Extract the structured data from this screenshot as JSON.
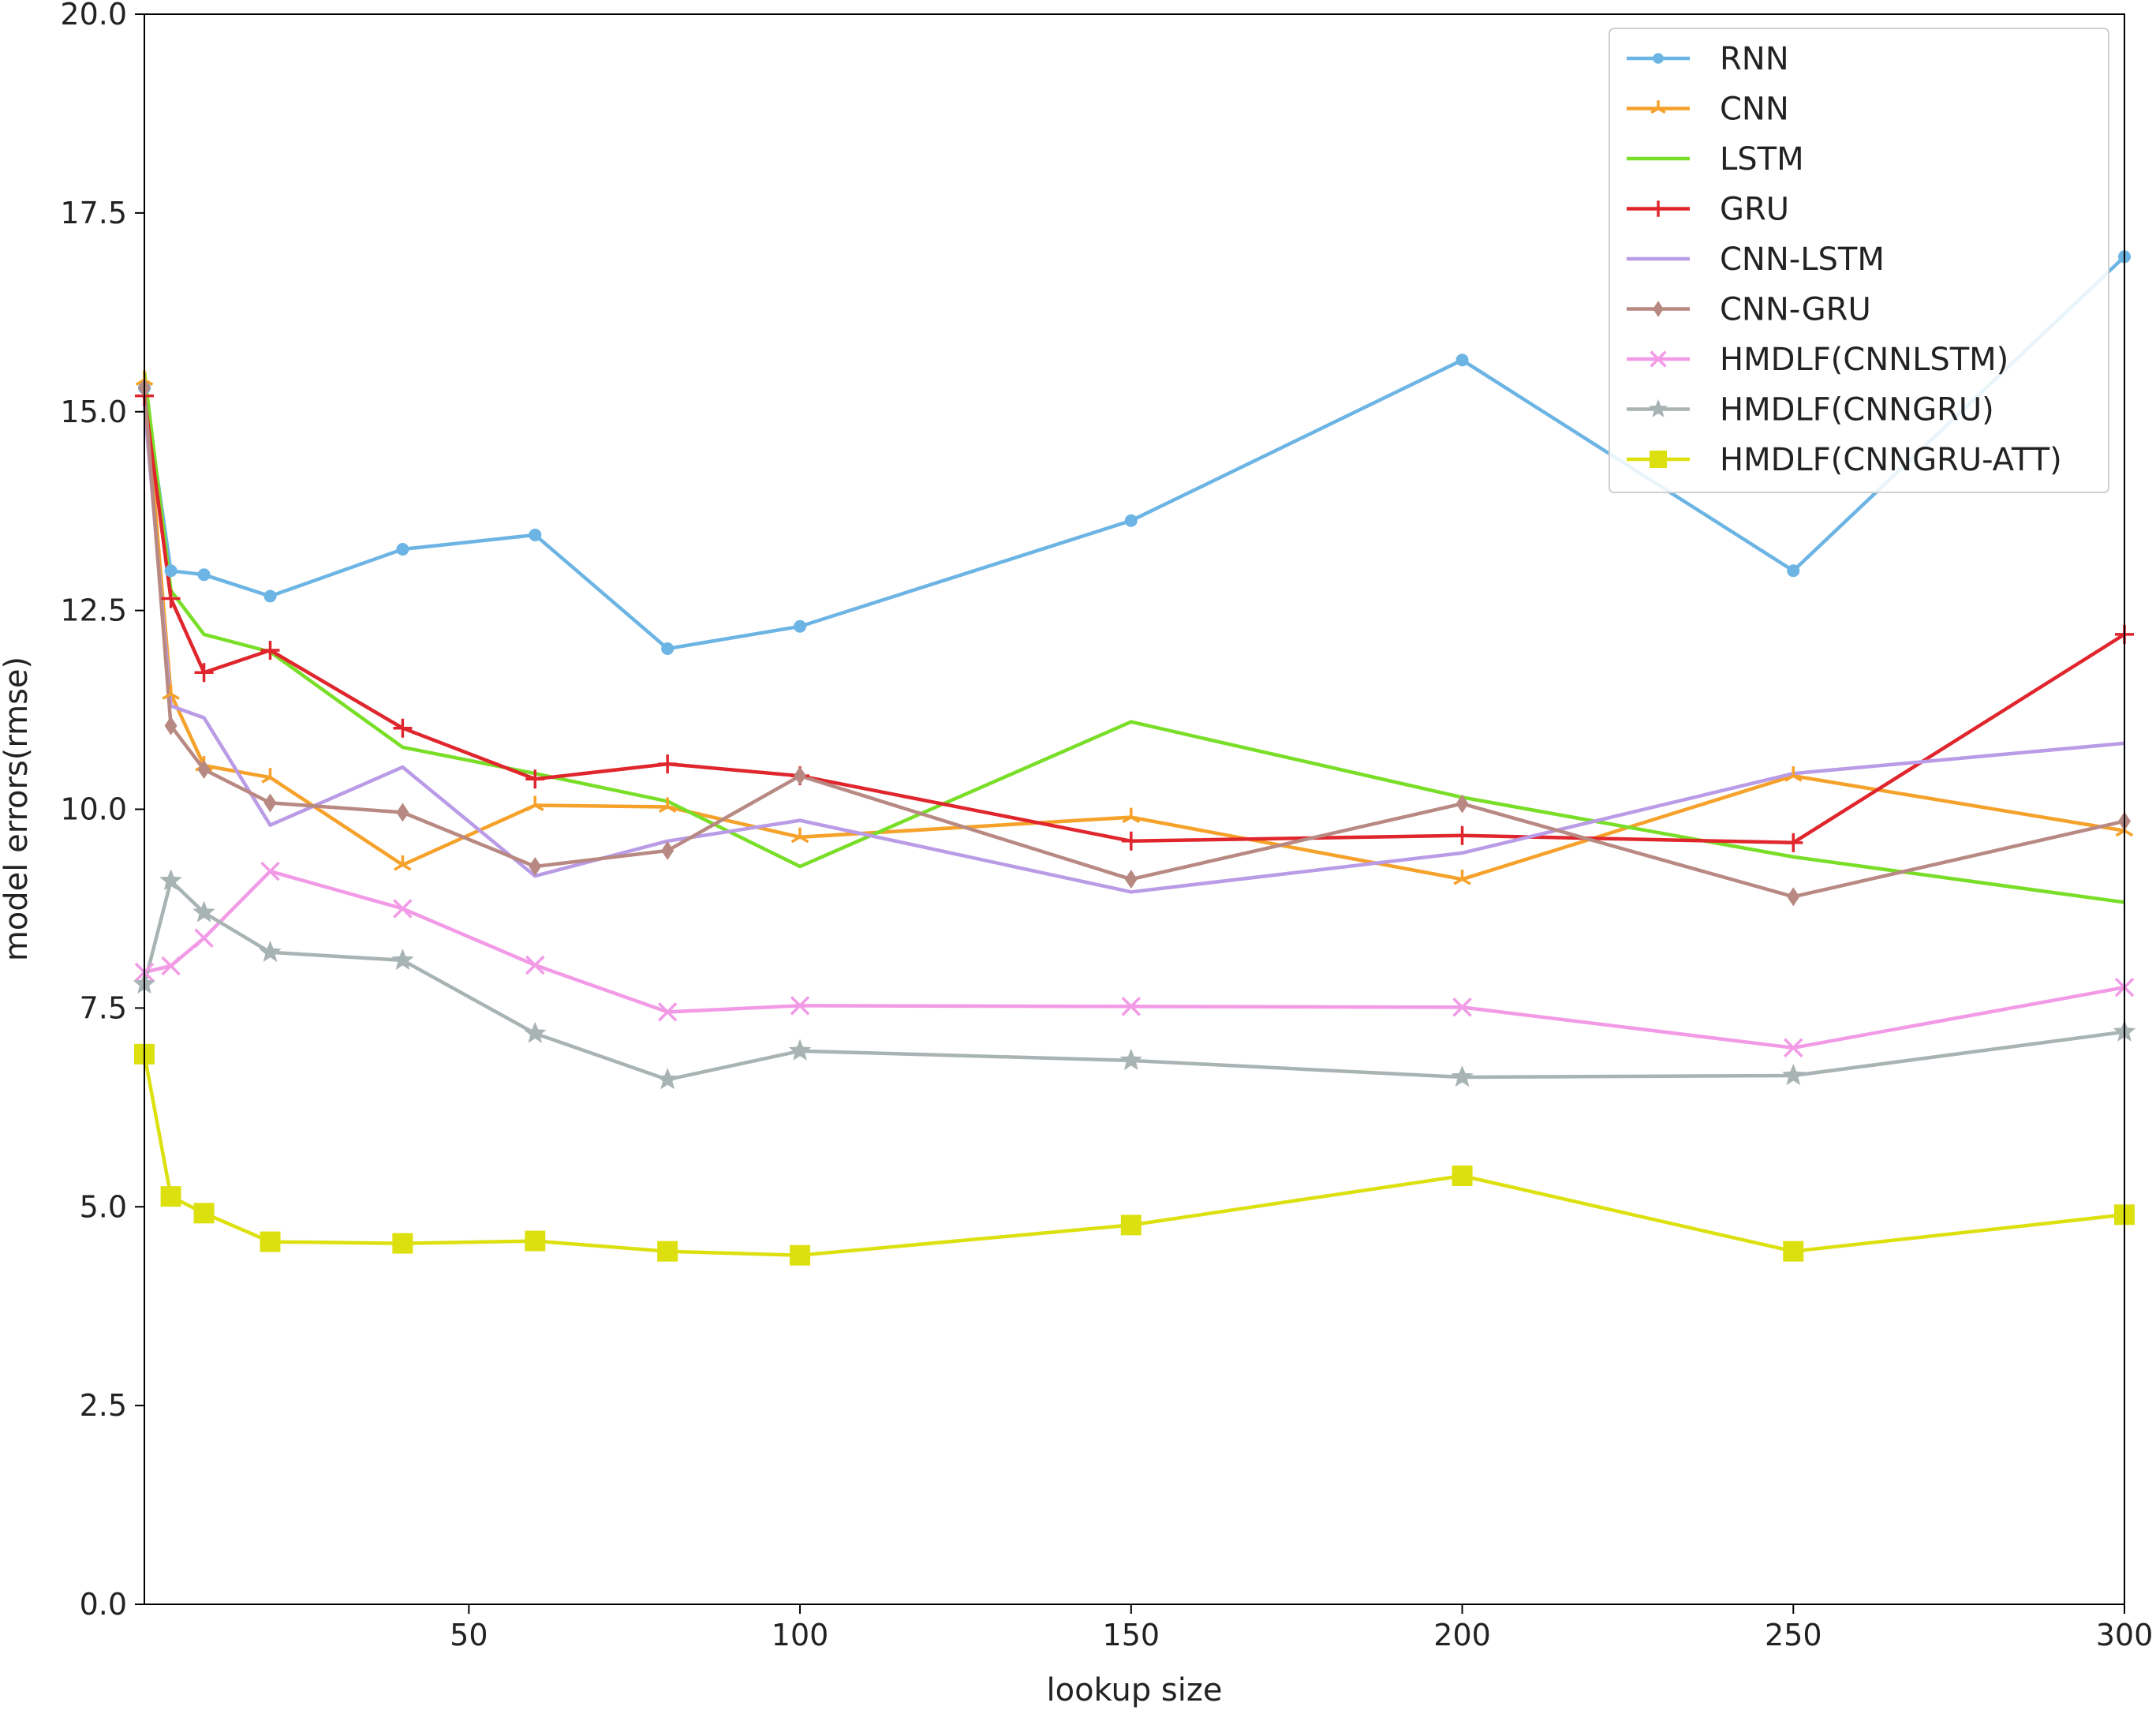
{
  "chart_data": {
    "type": "line",
    "title": "",
    "xlabel": "lookup size",
    "ylabel": "model errors(rmse)",
    "xlim": [
      1,
      300
    ],
    "ylim": [
      0,
      20
    ],
    "x_ticks": [
      50,
      100,
      150,
      200,
      250,
      300
    ],
    "x_tick_labels": [
      "50",
      "100",
      "150",
      "200",
      "250",
      "300"
    ],
    "y_ticks": [
      0,
      2.5,
      5,
      7.5,
      10,
      12.5,
      15,
      17.5,
      20
    ],
    "y_tick_labels": [
      "0.0",
      "2.5",
      "5.0",
      "7.5",
      "10.0",
      "12.5",
      "15.0",
      "17.5",
      "20.0"
    ],
    "grid": false,
    "legend_position": "top-right",
    "x": [
      1,
      5,
      10,
      20,
      40,
      60,
      80,
      100,
      150,
      200,
      250,
      300
    ],
    "series": [
      {
        "name": "RNN",
        "color": "#6cb4e4",
        "marker": "circle",
        "values": [
          15.3,
          13.0,
          12.95,
          12.68,
          13.27,
          13.45,
          12.02,
          12.3,
          13.63,
          15.65,
          13.0,
          16.95
        ]
      },
      {
        "name": "CNN",
        "color": "#f5a12a",
        "marker": "tri",
        "values": [
          15.4,
          11.45,
          10.55,
          10.4,
          9.3,
          10.05,
          10.03,
          9.65,
          9.9,
          9.12,
          10.42,
          9.73
        ]
      },
      {
        "name": "LSTM",
        "color": "#79de27",
        "marker": "none",
        "values": [
          15.5,
          12.75,
          12.2,
          11.98,
          10.78,
          10.45,
          10.1,
          9.28,
          11.1,
          10.15,
          9.4,
          8.83
        ]
      },
      {
        "name": "GRU",
        "color": "#e0262d",
        "marker": "plus",
        "values": [
          15.2,
          12.65,
          11.72,
          12.0,
          11.02,
          10.38,
          10.57,
          10.42,
          9.6,
          9.67,
          9.58,
          12.2
        ]
      },
      {
        "name": "CNN-LSTM",
        "color": "#b99be6",
        "marker": "none",
        "values": [
          15.1,
          11.3,
          11.15,
          9.8,
          10.53,
          9.16,
          9.6,
          9.86,
          8.96,
          9.45,
          10.45,
          10.83
        ]
      },
      {
        "name": "CNN-GRU",
        "color": "#b88982",
        "marker": "diamond",
        "values": [
          15.3,
          11.05,
          10.5,
          10.08,
          9.96,
          9.28,
          9.48,
          10.42,
          9.12,
          10.07,
          8.9,
          9.85
        ]
      },
      {
        "name": "HMDLF(CNNLSTM)",
        "color": "#f29ae6",
        "marker": "x",
        "values": [
          7.95,
          8.03,
          8.38,
          9.22,
          8.75,
          8.04,
          7.45,
          7.53,
          7.52,
          7.51,
          7.0,
          7.76
        ]
      },
      {
        "name": "HMDLF(CNNGRU)",
        "color": "#a8b3b4",
        "marker": "star",
        "values": [
          7.8,
          9.1,
          8.7,
          8.2,
          8.1,
          7.18,
          6.6,
          6.96,
          6.84,
          6.63,
          6.65,
          7.2
        ]
      },
      {
        "name": "HMDLF(CNNGRU-ATT)",
        "color": "#dde00f",
        "marker": "square",
        "values": [
          6.92,
          5.13,
          4.92,
          4.56,
          4.54,
          4.57,
          4.44,
          4.39,
          4.77,
          5.39,
          4.44,
          4.9
        ]
      }
    ]
  }
}
